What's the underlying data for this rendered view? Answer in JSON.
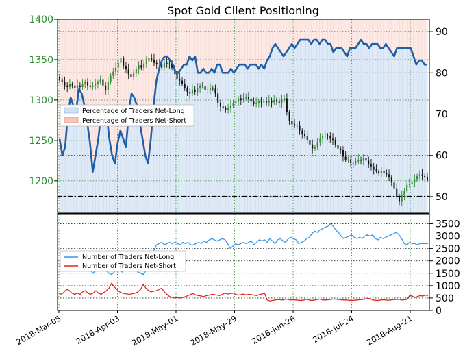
{
  "chart_data": [
    {
      "panel": "top",
      "type": "line",
      "title": "Spot Gold Client Positioning",
      "x_ticks": [
        "2018-Mar-05",
        "2018-Apr-03",
        "2018-May-01",
        "2018-May-29",
        "2018-Jun-26",
        "2018-Jul-24",
        "2018-Aug-21"
      ],
      "left_axis": {
        "ticks": [
          "1200",
          "1250",
          "1300",
          "1350",
          "1400"
        ],
        "ylim": [
          1160,
          1400
        ],
        "color": "#2b8a2b"
      },
      "right_axis": {
        "ticks": [
          "50",
          "60",
          "70",
          "80",
          "90"
        ],
        "ylim": [
          46,
          93
        ]
      },
      "legend": [
        "Percentage of Traders Net-Long",
        "Percentage of Traders Net-Short"
      ],
      "legend_placement": "upper-left",
      "grid": true,
      "reference_level_right_axis": 50,
      "colors": {
        "net_long_fill": "#dbe8f5",
        "net_short_fill": "#fbe1dc",
        "long_line": "#1f5ea8",
        "candle_up": "#2e8b2e",
        "candle_down": "#111111",
        "grid_green": "#3a9a3a",
        "grid_black": "#222222"
      },
      "series": [
        {
          "name": "Percentage of Traders Net-Long",
          "axis": "right",
          "values": [
            64,
            60,
            62,
            70,
            74,
            72,
            71,
            76,
            75,
            72,
            68,
            63,
            56,
            60,
            64,
            70,
            72,
            70,
            64,
            60,
            58,
            63,
            66,
            64,
            62,
            70,
            75,
            74,
            72,
            68,
            64,
            60,
            58,
            64,
            72,
            78,
            81,
            83,
            84,
            84,
            83,
            82,
            80,
            80,
            81,
            82,
            82,
            84,
            83,
            84,
            80,
            80,
            81,
            80,
            80,
            81,
            80,
            82,
            82,
            80,
            80,
            80,
            81,
            80,
            81,
            82,
            82,
            82,
            81,
            82,
            82,
            82,
            81,
            82,
            81,
            83,
            84,
            86,
            87,
            86,
            85,
            84,
            85,
            86,
            87,
            86,
            87,
            88,
            88,
            88,
            88,
            87,
            88,
            88,
            87,
            88,
            88,
            87,
            87,
            85,
            86,
            86,
            86,
            85,
            84,
            86,
            86,
            86,
            87,
            88,
            87,
            87,
            86,
            87,
            87,
            87,
            86,
            86,
            87,
            86,
            85,
            84,
            86,
            86,
            86,
            86,
            86,
            86,
            84,
            82,
            83,
            83,
            82,
            82
          ]
        },
        {
          "name": "Spot Gold",
          "type": "candlestick",
          "axis": "left",
          "closes": [
            1325,
            1322,
            1318,
            1316,
            1320,
            1318,
            1315,
            1318,
            1316,
            1320,
            1322,
            1318,
            1316,
            1318,
            1320,
            1322,
            1325,
            1318,
            1312,
            1322,
            1330,
            1335,
            1340,
            1346,
            1352,
            1342,
            1338,
            1332,
            1328,
            1333,
            1338,
            1343,
            1340,
            1345,
            1348,
            1352,
            1350,
            1346,
            1344,
            1345,
            1340,
            1346,
            1345,
            1344,
            1340,
            1336,
            1326,
            1324,
            1320,
            1315,
            1310,
            1308,
            1313,
            1310,
            1315,
            1318,
            1317,
            1312,
            1313,
            1315,
            1314,
            1308,
            1296,
            1292,
            1290,
            1288,
            1290,
            1293,
            1296,
            1298,
            1302,
            1300,
            1302,
            1304,
            1301,
            1298,
            1295,
            1296,
            1298,
            1297,
            1299,
            1297,
            1299,
            1297,
            1300,
            1298,
            1296,
            1300,
            1302,
            1285,
            1274,
            1270,
            1268,
            1268,
            1262,
            1258,
            1255,
            1250,
            1245,
            1240,
            1242,
            1248,
            1252,
            1255,
            1256,
            1255,
            1252,
            1250,
            1244,
            1240,
            1238,
            1230,
            1226,
            1226,
            1222,
            1222,
            1224,
            1226,
            1225,
            1228,
            1225,
            1220,
            1218,
            1214,
            1212,
            1210,
            1212,
            1210,
            1208,
            1204,
            1198,
            1190,
            1180,
            1174,
            1182,
            1188,
            1195,
            1196,
            1198,
            1202,
            1206,
            1208,
            1206,
            1204,
            1201
          ]
        }
      ]
    },
    {
      "panel": "bottom",
      "type": "line",
      "left_axis_note": "no labels",
      "right_axis": {
        "ticks": [
          "0",
          "500",
          "1000",
          "1500",
          "2000",
          "2500",
          "3000",
          "3500"
        ],
        "ylim": [
          0,
          3900
        ]
      },
      "legend": [
        "Number of Traders Net-Long",
        "Number of Traders Net-Short"
      ],
      "legend_placement": "upper-left",
      "grid": true,
      "colors": {
        "net_long_line": "#3d94e0",
        "net_short_line": "#e0261f"
      },
      "series": [
        {
          "name": "Number of Traders Net-Long",
          "values": [
            1800,
            1750,
            1850,
            1800,
            1700,
            1750,
            1800,
            1750,
            1700,
            1800,
            1850,
            1700,
            1600,
            1500,
            1650,
            1750,
            1800,
            1700,
            1600,
            1500,
            1450,
            1550,
            1650,
            1600,
            1550,
            1700,
            1850,
            1800,
            1750,
            1650,
            1550,
            1500,
            1450,
            1600,
            1850,
            2050,
            2400,
            2650,
            2700,
            2750,
            2650,
            2700,
            2750,
            2700,
            2750,
            2700,
            2650,
            2750,
            2700,
            2750,
            2650,
            2650,
            2700,
            2750,
            2700,
            2800,
            2750,
            2850,
            2900,
            2850,
            2800,
            2850,
            2900,
            2850,
            2700,
            2500,
            2600,
            2700,
            2650,
            2700,
            2750,
            2700,
            2750,
            2800,
            2650,
            2750,
            2850,
            2800,
            2850,
            2750,
            2900,
            2800,
            2700,
            2850,
            2900,
            2800,
            2750,
            2900,
            2950,
            2900,
            2850,
            2700,
            2750,
            2800,
            2900,
            2950,
            3100,
            3200,
            3150,
            3250,
            3300,
            3350,
            3400,
            3500,
            3400,
            3250,
            3150,
            3000,
            2900,
            2950,
            3000,
            3050,
            2950,
            2900,
            2950,
            2900,
            3000,
            3050,
            3000,
            3050,
            2900,
            2850,
            2950,
            2900,
            2950,
            3000,
            3050,
            3100,
            3150,
            3050,
            2900,
            2700,
            2650,
            2750,
            2700,
            2700,
            2650,
            2700,
            2700,
            2700,
            2700
          ]
        },
        {
          "name": "Number of Traders Net-Short",
          "values": [
            700,
            650,
            750,
            850,
            800,
            700,
            650,
            700,
            650,
            750,
            800,
            700,
            650,
            700,
            800,
            700,
            650,
            720,
            800,
            900,
            1100,
            950,
            850,
            750,
            700,
            680,
            660,
            650,
            680,
            700,
            750,
            850,
            1050,
            900,
            800,
            750,
            780,
            800,
            850,
            900,
            750,
            650,
            560,
            520,
            500,
            520,
            500,
            520,
            560,
            600,
            650,
            680,
            620,
            600,
            580,
            560,
            600,
            620,
            650,
            640,
            620,
            600,
            650,
            700,
            660,
            680,
            700,
            650,
            620,
            640,
            660,
            630,
            650,
            640,
            620,
            600,
            640,
            660,
            700,
            420,
            380,
            400,
            420,
            440,
            430,
            420,
            460,
            440,
            420,
            430,
            420,
            410,
            400,
            420,
            450,
            420,
            400,
            420,
            440,
            460,
            420,
            420,
            430,
            440,
            460,
            450,
            440,
            430,
            420,
            420,
            410,
            400,
            410,
            420,
            430,
            440,
            450,
            480,
            480,
            420,
            410,
            400,
            420,
            430,
            420,
            410,
            420,
            440,
            440,
            450,
            420,
            430,
            440,
            600,
            580,
            520,
            560,
            600,
            580,
            620,
            600,
            590
          ]
        }
      ]
    }
  ]
}
